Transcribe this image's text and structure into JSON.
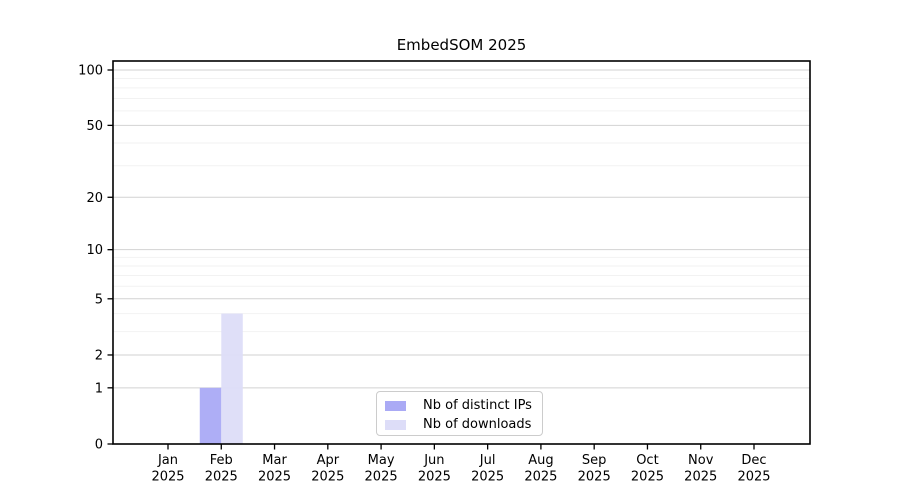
{
  "chart_data": {
    "type": "bar",
    "title": "EmbedSOM 2025",
    "categories": [
      "Jan 2025",
      "Feb 2025",
      "Mar 2025",
      "Apr 2025",
      "May 2025",
      "Jun 2025",
      "Jul 2025",
      "Aug 2025",
      "Sep 2025",
      "Oct 2025",
      "Nov 2025",
      "Dec 2025"
    ],
    "x_tick_months": [
      "Jan",
      "Feb",
      "Mar",
      "Apr",
      "May",
      "Jun",
      "Jul",
      "Aug",
      "Sep",
      "Oct",
      "Nov",
      "Dec"
    ],
    "x_tick_year": "2025",
    "series": [
      {
        "name": "Nb of distinct IPs",
        "color": "#aaaaf5",
        "values": [
          0,
          1,
          0,
          0,
          0,
          0,
          0,
          0,
          0,
          0,
          0,
          0
        ]
      },
      {
        "name": "Nb of downloads",
        "color": "#ddddf8",
        "values": [
          0,
          4,
          0,
          0,
          0,
          0,
          0,
          0,
          0,
          0,
          0,
          0
        ]
      }
    ],
    "xlabel": "",
    "ylabel": "",
    "y_scale": "log1p",
    "ylim": [
      0,
      100
    ],
    "y_ticks": [
      0,
      1,
      2,
      5,
      10,
      20,
      50,
      100
    ],
    "y_minor_ticks": [
      3,
      4,
      6,
      7,
      8,
      9,
      30,
      40,
      60,
      70,
      80,
      90
    ],
    "grid": true,
    "legend_position": "bottom-center"
  },
  "colors": {
    "axis": "#000000",
    "grid_major": "#d2d2d2",
    "grid_minor": "#f2f2f2",
    "legend_border": "#cccccc",
    "text": "#000000"
  }
}
